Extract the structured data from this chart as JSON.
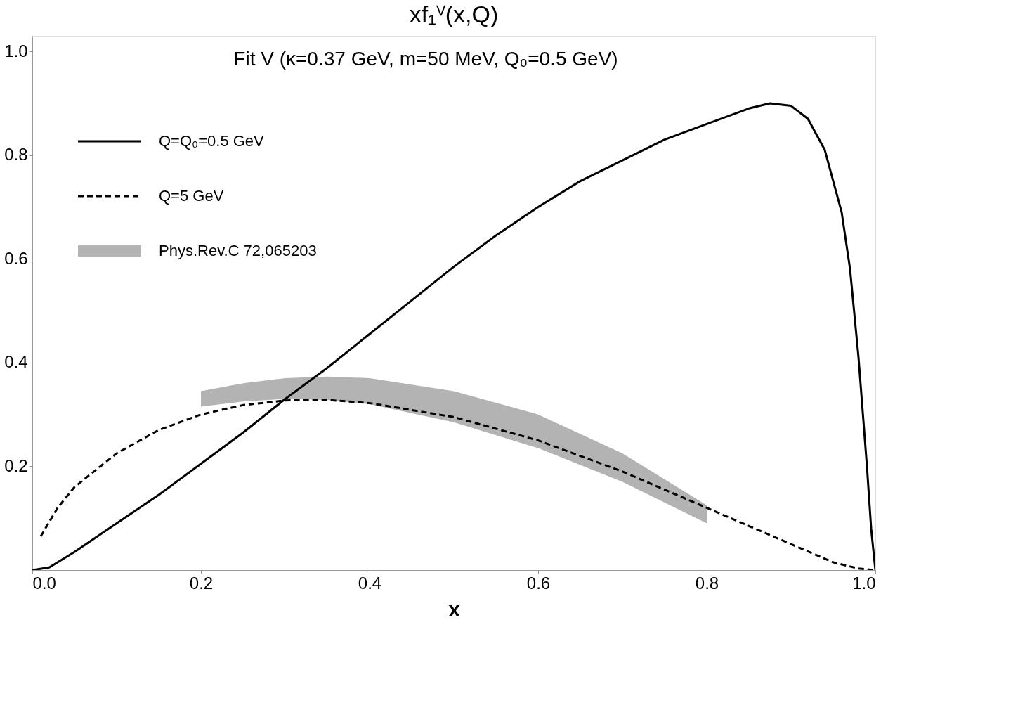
{
  "chart_data": {
    "type": "line",
    "title": "xf₁ⱽ(x,Q)",
    "xlabel": "x",
    "annotations": [
      "Fit V (κ=0.37 GeV, m=50 MeV, Q₀=0.5 GeV)"
    ],
    "xlim": [
      0,
      1
    ],
    "ylim": [
      0,
      1.03
    ],
    "xticks": [
      {
        "value": 0,
        "label": "0.0"
      },
      0.2,
      0.4,
      0.6,
      0.8,
      {
        "value": 1,
        "label": "1.0"
      }
    ],
    "yticks": [
      0.2,
      0.4,
      0.6,
      0.8,
      {
        "value": 1,
        "label": "1.0"
      }
    ],
    "grid": false,
    "legend": "top left",
    "series": [
      {
        "name": "Q=Q₀=0.5 GeV",
        "color": "#000000",
        "line_style": "solid",
        "x": [
          0,
          0.02,
          0.05,
          0.1,
          0.15,
          0.2,
          0.25,
          0.3,
          0.35,
          0.4,
          0.45,
          0.5,
          0.55,
          0.6,
          0.65,
          0.7,
          0.75,
          0.8,
          0.85,
          0.875,
          0.9,
          0.92,
          0.94,
          0.96,
          0.97,
          0.98,
          0.99,
          0.995,
          1.0
        ],
        "values": [
          0,
          0.005,
          0.035,
          0.09,
          0.145,
          0.205,
          0.265,
          0.33,
          0.39,
          0.455,
          0.52,
          0.585,
          0.645,
          0.7,
          0.75,
          0.79,
          0.83,
          0.86,
          0.89,
          0.9,
          0.895,
          0.87,
          0.81,
          0.69,
          0.58,
          0.41,
          0.2,
          0.08,
          0
        ]
      },
      {
        "name": "Q=5 GeV",
        "color": "#000000",
        "line_style": "dashed",
        "x": [
          0.01,
          0.03,
          0.05,
          0.1,
          0.15,
          0.2,
          0.25,
          0.3,
          0.35,
          0.4,
          0.5,
          0.6,
          0.7,
          0.8,
          0.85,
          0.9,
          0.95,
          0.98,
          1.0
        ],
        "values": [
          0.065,
          0.12,
          0.16,
          0.225,
          0.27,
          0.3,
          0.318,
          0.327,
          0.328,
          0.322,
          0.295,
          0.25,
          0.19,
          0.12,
          0.085,
          0.05,
          0.015,
          0.003,
          0
        ]
      },
      {
        "name": "Phys.Rev.C 72,065203",
        "color": "#b3b3b3",
        "x": [
          0.2,
          0.25,
          0.3,
          0.35,
          0.4,
          0.5,
          0.6,
          0.7,
          0.8
        ],
        "values": [
          null,
          null,
          null,
          null,
          null,
          null,
          null,
          null,
          null
        ],
        "lower": [
          0.315,
          0.325,
          0.33,
          0.328,
          0.32,
          0.285,
          0.235,
          0.17,
          0.09
        ],
        "upper": [
          0.345,
          0.36,
          0.37,
          0.373,
          0.37,
          0.345,
          0.3,
          0.225,
          0.125
        ]
      }
    ]
  }
}
